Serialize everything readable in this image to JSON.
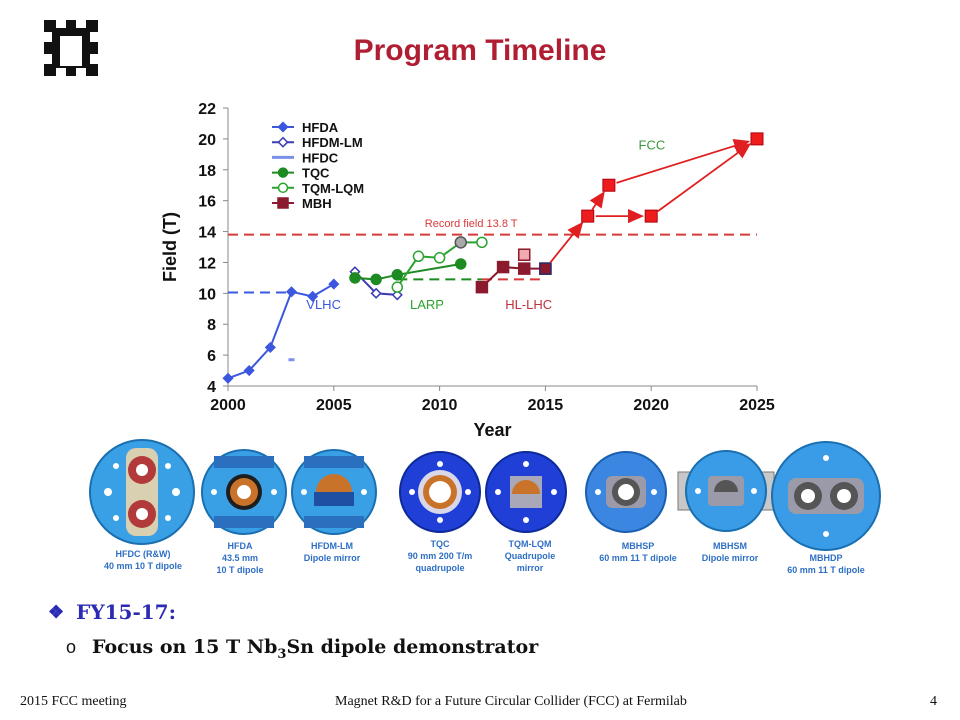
{
  "title": "Program Timeline",
  "chart_data": {
    "type": "scatter",
    "xlabel": "Year",
    "ylabel": "Field (T)",
    "xlim": [
      2000,
      2025
    ],
    "ylim": [
      4,
      22
    ],
    "x_ticks": [
      "2000",
      "2005",
      "2010",
      "2015",
      "2020",
      "2025"
    ],
    "y_ticks": [
      "4",
      "6",
      "8",
      "10",
      "12",
      "14",
      "16",
      "18",
      "20",
      "22"
    ],
    "legend_position": "top-left",
    "series": [
      {
        "name": "HFDA",
        "color": "#3b57e0",
        "marker": "filled-diamond",
        "line": true,
        "points": [
          [
            2000,
            4.5
          ],
          [
            2001,
            5.0
          ],
          [
            2002,
            6.5
          ],
          [
            2003,
            10.1
          ],
          [
            2004,
            9.8
          ],
          [
            2005,
            10.6
          ]
        ]
      },
      {
        "name": "HFDM-LM",
        "color": "#3b3bb5",
        "marker": "open-diamond",
        "line": true,
        "points": [
          [
            2006,
            11.4
          ],
          [
            2007,
            10.0
          ],
          [
            2008,
            9.9
          ]
        ]
      },
      {
        "name": "HFDC",
        "color": "#7b90e8",
        "marker": "dash",
        "line": false,
        "points": [
          [
            2003,
            5.7
          ]
        ]
      },
      {
        "name": "TQC",
        "color": "#1e8a22",
        "marker": "filled-circle",
        "line": true,
        "points": [
          [
            2006,
            11.0
          ],
          [
            2007,
            10.9
          ],
          [
            2008,
            11.2
          ],
          [
            2011,
            11.9
          ]
        ]
      },
      {
        "name": "TQM-LQM",
        "color": "#2aa32e",
        "marker": "open-circle",
        "line": true,
        "points": [
          [
            2008,
            10.4
          ],
          [
            2009,
            12.4
          ],
          [
            2010,
            12.3
          ],
          [
            2011,
            13.3
          ],
          [
            2012,
            13.3
          ]
        ]
      },
      {
        "name": "MBH",
        "color": "#8b1a2e",
        "marker": "filled-square",
        "line": true,
        "points": [
          [
            2012,
            10.4
          ],
          [
            2013,
            11.7
          ],
          [
            2014,
            11.6
          ],
          [
            2015,
            11.6
          ]
        ]
      }
    ],
    "extra_markers": [
      {
        "x": 2011,
        "y": 13.3,
        "shape": "circle",
        "fill": "#a9a9a9",
        "stroke": "#555555"
      },
      {
        "x": 2014,
        "y": 12.5,
        "shape": "square",
        "fill": "#f0aab0",
        "stroke": "#8b1a2e"
      },
      {
        "x": 2015,
        "y": 11.6,
        "shape": "square",
        "fill": "#8b1a2e",
        "stroke": "#2a2a6a"
      }
    ],
    "fcc_points": [
      [
        2017,
        15.0
      ],
      [
        2018,
        17.0
      ],
      [
        2020,
        15.0
      ],
      [
        2025,
        20.0
      ]
    ],
    "hlines": [
      {
        "y": 13.8,
        "color": "#d83a3a",
        "x_from": 2000,
        "x_to": 2025
      },
      {
        "y": 10.05,
        "color": "#3b57e0",
        "x_from": 2000,
        "x_to": 2003
      },
      {
        "y": 10.9,
        "color": "#1e8a22",
        "x_from": 2008,
        "x_to": 2012
      },
      {
        "y": 10.9,
        "color": "#d83a3a",
        "x_from": 2012,
        "x_to": 2015
      }
    ],
    "annotations": [
      {
        "text": "Record field 13.8 T",
        "x": 2009.3,
        "y": 14.3,
        "color": "#d83a3a"
      },
      {
        "text": "FCC",
        "x": 2019.4,
        "y": 19.3,
        "color": "#3a9a3a"
      },
      {
        "text": "VLHC",
        "x": 2003.7,
        "y": 9.0,
        "color": "#3b57e0"
      },
      {
        "text": "LARP",
        "x": 2008.6,
        "y": 9.0,
        "color": "#2aa32e"
      },
      {
        "text": "HL-LHC",
        "x": 2013.1,
        "y": 9.0,
        "color": "#c0303a"
      }
    ]
  },
  "magnets": [
    {
      "name": "hfdc-magnet",
      "caption": [
        "HFDC (R&W)",
        "40 mm 10 T dipole"
      ]
    },
    {
      "name": "hfda-magnet",
      "caption": [
        "HFDA",
        "43.5 mm",
        "10 T dipole"
      ]
    },
    {
      "name": "hfdm-lm-magnet",
      "caption": [
        "HFDM-LM",
        "Dipole mirror"
      ]
    },
    {
      "name": "tqc-magnet",
      "caption": [
        "TQC",
        "90 mm 200 T/m",
        "quadrupole"
      ]
    },
    {
      "name": "tqm-lqm-magnet",
      "caption": [
        "TQM-LQM",
        "Quadrupole",
        "mirror"
      ]
    },
    {
      "name": "mbhsp-magnet",
      "caption": [
        "MBHSP",
        "60 mm 11 T dipole"
      ]
    },
    {
      "name": "mbhsm-magnet",
      "caption": [
        "MBHSM",
        "Dipole mirror"
      ]
    },
    {
      "name": "mbhdp-magnet",
      "caption": [
        "MBHDP",
        "60 mm 11 T dipole"
      ]
    }
  ],
  "bullets": {
    "heading": "FY15-17:",
    "sub_marker": "o",
    "sub_text_prefix": "Focus on 15 T Nb",
    "sub_text_subscript": "3",
    "sub_text_suffix": "Sn dipole demonstrator"
  },
  "footer": {
    "left": "2015 FCC meeting",
    "center": "Magnet R&D for a Future Circular Collider (FCC) at Fermilab",
    "right": "4"
  }
}
